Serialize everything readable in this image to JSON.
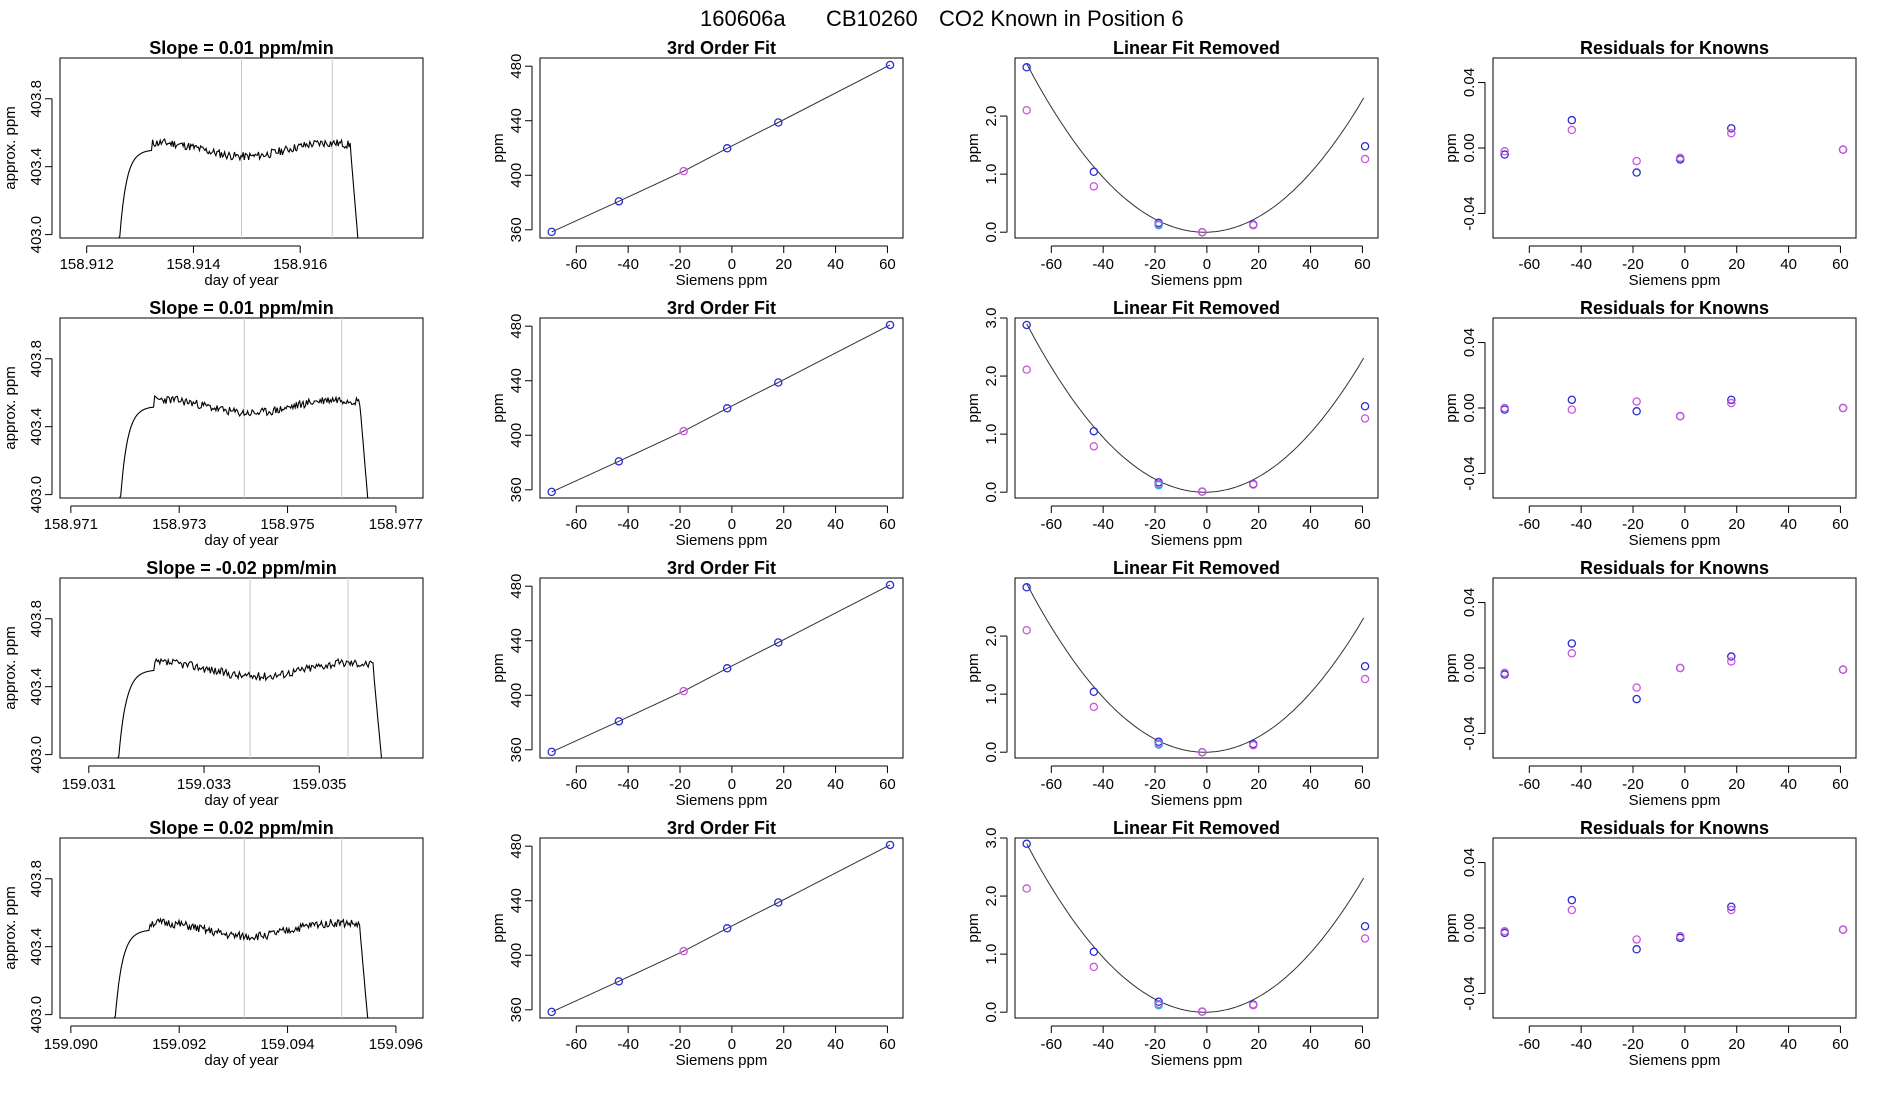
{
  "figure": {
    "title_id": "160606a",
    "title_instrument": "CB10260",
    "title_text": "CO2 Known in Position  6"
  },
  "colors": {
    "frame": "#000000",
    "trace": "#000000",
    "fit_line": "#333333",
    "vline": "#c8c8c8",
    "blue_point": "#2b2bd6",
    "magenta_point": "#cc55dd",
    "cyan_point": "#33aadd"
  },
  "chart_data": [
    {
      "row": 1,
      "type": "line",
      "title": "Slope =  0.01  ppm/min",
      "xlabel": "day of year",
      "ylabel": "approx. ppm",
      "xlim": [
        158.9115,
        158.9183
      ],
      "ylim": [
        402.98,
        404.04
      ],
      "xticks": [
        158.912,
        158.914,
        158.916
      ],
      "xtick_labels": [
        "158.912",
        "158.914",
        "158.916"
      ],
      "yticks": [
        403.0,
        403.4,
        403.8
      ],
      "ytick_labels": [
        "403.0",
        "403.4",
        "403.8"
      ],
      "vlines": [
        158.9149,
        158.9166
      ],
      "trace": {
        "x_start": 158.9126,
        "x_end": 158.9171,
        "plateau": 403.5,
        "seed": 11
      }
    },
    {
      "row": 1,
      "type": "line",
      "title": "3rd Order Fit",
      "xlabel": "Siemens ppm",
      "ylabel": "ppm",
      "xlim": [
        -74,
        66
      ],
      "ylim": [
        354,
        486
      ],
      "xticks": [
        -60,
        -40,
        -20,
        0,
        20,
        40,
        60
      ],
      "xtick_labels": [
        "-60",
        "-40",
        "-20",
        "0",
        "20",
        "40",
        "60"
      ],
      "yticks": [
        360,
        400,
        440,
        480
      ],
      "ytick_labels": [
        "360",
        "400",
        "440",
        "480"
      ],
      "x": [
        -69.5,
        -43.6,
        -18.6,
        -1.8,
        17.9,
        61.0
      ],
      "y": [
        358.5,
        380.9,
        403.0,
        419.8,
        438.7,
        480.9
      ],
      "point_colors": [
        "blue",
        "blue",
        "magenta",
        "blue",
        "blue",
        "blue"
      ]
    },
    {
      "row": 1,
      "type": "scatter",
      "title": "Linear Fit Removed",
      "xlabel": "Siemens ppm",
      "ylabel": "ppm",
      "xlim": [
        -74,
        66
      ],
      "ylim": [
        -0.1,
        3.0
      ],
      "xticks": [
        -60,
        -40,
        -20,
        0,
        20,
        40,
        60
      ],
      "xtick_labels": [
        "-60",
        "-40",
        "-20",
        "0",
        "20",
        "40",
        "60"
      ],
      "yticks": [
        0.0,
        1.0,
        2.0
      ],
      "ytick_labels": [
        "0.0",
        "1.0",
        "2.0"
      ],
      "curve": {
        "a": 0.000615,
        "b": 0.001
      },
      "series": [
        {
          "name": "blue",
          "x": [
            -69.5,
            -43.6,
            -18.6,
            -1.8,
            17.9,
            61.0
          ],
          "y": [
            2.84,
            1.04,
            0.16,
            0.0,
            0.13,
            1.48
          ]
        },
        {
          "name": "magenta",
          "x": [
            -69.5,
            -43.6,
            -18.6,
            -1.8,
            17.9,
            61.0
          ],
          "y": [
            2.1,
            0.79,
            0.14,
            0.0,
            0.12,
            1.26
          ]
        },
        {
          "name": "cyan",
          "x": [
            -18.6
          ],
          "y": [
            0.12
          ]
        }
      ]
    },
    {
      "row": 1,
      "type": "scatter",
      "title": "Residuals for Knowns",
      "xlabel": "Siemens ppm",
      "ylabel": "ppm",
      "xlim": [
        -74,
        66
      ],
      "ylim": [
        -0.055,
        0.055
      ],
      "xticks": [
        -60,
        -40,
        -20,
        0,
        20,
        40,
        60
      ],
      "xtick_labels": [
        "-60",
        "-40",
        "-20",
        "0",
        "20",
        "40",
        "60"
      ],
      "yticks": [
        -0.04,
        0.0,
        0.04
      ],
      "ytick_labels": [
        "-0.04",
        "0.00",
        "0.04"
      ],
      "series": [
        {
          "name": "blue",
          "x": [
            -69.5,
            -43.6,
            -18.6,
            -1.8,
            17.9,
            61.0
          ],
          "y": [
            -0.004,
            0.017,
            -0.015,
            -0.007,
            0.012,
            -0.001
          ]
        },
        {
          "name": "magenta",
          "x": [
            -69.5,
            -43.6,
            -18.6,
            -1.8,
            17.9,
            61.0
          ],
          "y": [
            -0.002,
            0.011,
            -0.008,
            -0.006,
            0.009,
            -0.001
          ]
        }
      ]
    },
    {
      "row": 2,
      "type": "line",
      "title": "Slope =  0.01  ppm/min",
      "xlabel": "day of year",
      "ylabel": "approx. ppm",
      "xlim": [
        158.9708,
        158.9775
      ],
      "ylim": [
        402.98,
        404.04
      ],
      "xticks": [
        158.971,
        158.973,
        158.975,
        158.977
      ],
      "xtick_labels": [
        "158.971",
        "158.973",
        "158.975",
        "158.977"
      ],
      "yticks": [
        403.0,
        403.4,
        403.8
      ],
      "ytick_labels": [
        "403.0",
        "403.4",
        "403.8"
      ],
      "vlines": [
        158.9742,
        158.976
      ],
      "trace": {
        "x_start": 158.9719,
        "x_end": 158.9765,
        "plateau": 403.52,
        "seed": 23
      }
    },
    {
      "row": 2,
      "type": "line",
      "title": "3rd Order Fit",
      "xlabel": "Siemens ppm",
      "ylabel": "ppm",
      "xlim": [
        -74,
        66
      ],
      "ylim": [
        354,
        486
      ],
      "xticks": [
        -60,
        -40,
        -20,
        0,
        20,
        40,
        60
      ],
      "xtick_labels": [
        "-60",
        "-40",
        "-20",
        "0",
        "20",
        "40",
        "60"
      ],
      "yticks": [
        360,
        400,
        440,
        480
      ],
      "ytick_labels": [
        "360",
        "400",
        "440",
        "480"
      ],
      "x": [
        -69.5,
        -43.6,
        -18.6,
        -1.8,
        17.9,
        61.0
      ],
      "y": [
        358.5,
        380.9,
        403.0,
        419.8,
        438.7,
        480.9
      ],
      "point_colors": [
        "blue",
        "blue",
        "magenta",
        "blue",
        "blue",
        "blue"
      ]
    },
    {
      "row": 2,
      "type": "scatter",
      "title": "Linear Fit Removed",
      "xlabel": "Siemens ppm",
      "ylabel": "ppm",
      "xlim": [
        -74,
        66
      ],
      "ylim": [
        -0.1,
        3.0
      ],
      "xticks": [
        -60,
        -40,
        -20,
        0,
        20,
        40,
        60
      ],
      "xtick_labels": [
        "-60",
        "-40",
        "-20",
        "0",
        "20",
        "40",
        "60"
      ],
      "yticks": [
        0.0,
        1.0,
        2.0,
        3.0
      ],
      "ytick_labels": [
        "0.0",
        "1.0",
        "2.0",
        "3.0"
      ],
      "curve": {
        "a": 0.000615,
        "b": 0.001
      },
      "series": [
        {
          "name": "blue",
          "x": [
            -69.5,
            -43.6,
            -18.6,
            -1.8,
            17.9,
            61.0
          ],
          "y": [
            2.88,
            1.05,
            0.17,
            0.01,
            0.14,
            1.48
          ]
        },
        {
          "name": "magenta",
          "x": [
            -69.5,
            -43.6,
            -18.6,
            -1.8,
            17.9,
            61.0
          ],
          "y": [
            2.11,
            0.79,
            0.14,
            0.01,
            0.13,
            1.27
          ]
        },
        {
          "name": "cyan",
          "x": [
            -18.6
          ],
          "y": [
            0.12
          ]
        }
      ]
    },
    {
      "row": 2,
      "type": "scatter",
      "title": "Residuals for Knowns",
      "xlabel": "Siemens ppm",
      "ylabel": "ppm",
      "xlim": [
        -74,
        66
      ],
      "ylim": [
        -0.055,
        0.055
      ],
      "xticks": [
        -60,
        -40,
        -20,
        0,
        20,
        40,
        60
      ],
      "xtick_labels": [
        "-60",
        "-40",
        "-20",
        "0",
        "20",
        "40",
        "60"
      ],
      "yticks": [
        -0.04,
        0.0,
        0.04
      ],
      "ytick_labels": [
        "-0.04",
        "0.00",
        "0.04"
      ],
      "series": [
        {
          "name": "blue",
          "x": [
            -69.5,
            -43.6,
            -18.6,
            -1.8,
            17.9,
            61.0
          ],
          "y": [
            -0.001,
            0.005,
            -0.002,
            -0.005,
            0.005,
            0.0
          ]
        },
        {
          "name": "magenta",
          "x": [
            -69.5,
            -43.6,
            -18.6,
            -1.8,
            17.9,
            61.0
          ],
          "y": [
            0.0,
            -0.001,
            0.004,
            -0.005,
            0.003,
            0.0
          ]
        }
      ]
    },
    {
      "row": 3,
      "type": "line",
      "title": "Slope =  -0.02  ppm/min",
      "xlabel": "day of year",
      "ylabel": "approx. ppm",
      "xlim": [
        159.0305,
        159.0368
      ],
      "ylim": [
        402.98,
        404.04
      ],
      "xticks": [
        159.031,
        159.033,
        159.035
      ],
      "xtick_labels": [
        "159.031",
        "159.033",
        "159.035"
      ],
      "yticks": [
        403.0,
        403.4,
        403.8
      ],
      "ytick_labels": [
        "403.0",
        "403.4",
        "403.8"
      ],
      "vlines": [
        159.0338,
        159.0355
      ],
      "trace": {
        "x_start": 159.0315,
        "x_end": 159.0361,
        "plateau": 403.5,
        "seed": 37
      }
    },
    {
      "row": 3,
      "type": "line",
      "title": "3rd Order Fit",
      "xlabel": "Siemens ppm",
      "ylabel": "ppm",
      "xlim": [
        -74,
        66
      ],
      "ylim": [
        354,
        486
      ],
      "xticks": [
        -60,
        -40,
        -20,
        0,
        20,
        40,
        60
      ],
      "xtick_labels": [
        "-60",
        "-40",
        "-20",
        "0",
        "20",
        "40",
        "60"
      ],
      "yticks": [
        360,
        400,
        440,
        480
      ],
      "ytick_labels": [
        "360",
        "400",
        "440",
        "480"
      ],
      "x": [
        -69.5,
        -43.6,
        -18.6,
        -1.8,
        17.9,
        61.0
      ],
      "y": [
        358.5,
        380.9,
        403.0,
        419.8,
        438.7,
        480.9
      ],
      "point_colors": [
        "blue",
        "blue",
        "magenta",
        "blue",
        "blue",
        "blue"
      ]
    },
    {
      "row": 3,
      "type": "scatter",
      "title": "Linear Fit Removed",
      "xlabel": "Siemens ppm",
      "ylabel": "ppm",
      "xlim": [
        -74,
        66
      ],
      "ylim": [
        -0.1,
        3.0
      ],
      "xticks": [
        -60,
        -40,
        -20,
        0,
        20,
        40,
        60
      ],
      "xtick_labels": [
        "-60",
        "-40",
        "-20",
        "0",
        "20",
        "40",
        "60"
      ],
      "yticks": [
        0.0,
        1.0,
        2.0
      ],
      "ytick_labels": [
        "0.0",
        "1.0",
        "2.0"
      ],
      "curve": {
        "a": 0.000615,
        "b": 0.001
      },
      "series": [
        {
          "name": "blue",
          "x": [
            -69.5,
            -43.6,
            -18.6,
            -1.8,
            17.9,
            61.0
          ],
          "y": [
            2.84,
            1.04,
            0.18,
            0.0,
            0.14,
            1.48
          ]
        },
        {
          "name": "magenta",
          "x": [
            -69.5,
            -43.6,
            -18.6,
            -1.8,
            17.9,
            61.0
          ],
          "y": [
            2.1,
            0.78,
            0.15,
            0.0,
            0.12,
            1.26
          ]
        },
        {
          "name": "cyan",
          "x": [
            -18.6
          ],
          "y": [
            0.13
          ]
        }
      ]
    },
    {
      "row": 3,
      "type": "scatter",
      "title": "Residuals for Knowns",
      "xlabel": "Siemens ppm",
      "ylabel": "ppm",
      "xlim": [
        -74,
        66
      ],
      "ylim": [
        -0.055,
        0.055
      ],
      "xticks": [
        -60,
        -40,
        -20,
        0,
        20,
        40,
        60
      ],
      "xtick_labels": [
        "-60",
        "-40",
        "-20",
        "0",
        "20",
        "40",
        "60"
      ],
      "yticks": [
        -0.04,
        0.0,
        0.04
      ],
      "ytick_labels": [
        "-0.04",
        "0.00",
        "0.04"
      ],
      "series": [
        {
          "name": "blue",
          "x": [
            -69.5,
            -43.6,
            -18.6,
            -1.8,
            17.9,
            61.0
          ],
          "y": [
            -0.004,
            0.015,
            -0.019,
            0.0,
            0.007,
            -0.001
          ]
        },
        {
          "name": "magenta",
          "x": [
            -69.5,
            -43.6,
            -18.6,
            -1.8,
            17.9,
            61.0
          ],
          "y": [
            -0.003,
            0.009,
            -0.012,
            0.0,
            0.004,
            -0.001
          ]
        }
      ]
    },
    {
      "row": 4,
      "type": "line",
      "title": "Slope =  0.02  ppm/min",
      "xlabel": "day of year",
      "ylabel": "approx. ppm",
      "xlim": [
        159.0898,
        159.0965
      ],
      "ylim": [
        402.98,
        404.04
      ],
      "xticks": [
        159.09,
        159.092,
        159.094,
        159.096
      ],
      "xtick_labels": [
        "159.090",
        "159.092",
        "159.094",
        "159.096"
      ],
      "yticks": [
        403.0,
        403.4,
        403.8
      ],
      "ytick_labels": [
        "403.0",
        "403.4",
        "403.8"
      ],
      "vlines": [
        159.0932,
        159.095
      ],
      "trace": {
        "x_start": 159.0908,
        "x_end": 159.0955,
        "plateau": 403.5,
        "seed": 51
      }
    },
    {
      "row": 4,
      "type": "line",
      "title": "3rd Order Fit",
      "xlabel": "Siemens ppm",
      "ylabel": "ppm",
      "xlim": [
        -74,
        66
      ],
      "ylim": [
        354,
        486
      ],
      "xticks": [
        -60,
        -40,
        -20,
        0,
        20,
        40,
        60
      ],
      "xtick_labels": [
        "-60",
        "-40",
        "-20",
        "0",
        "20",
        "40",
        "60"
      ],
      "yticks": [
        360,
        400,
        440,
        480
      ],
      "ytick_labels": [
        "360",
        "400",
        "440",
        "480"
      ],
      "x": [
        -69.5,
        -43.6,
        -18.6,
        -1.8,
        17.9,
        61.0
      ],
      "y": [
        358.5,
        380.9,
        403.0,
        419.8,
        438.7,
        480.9
      ],
      "point_colors": [
        "blue",
        "blue",
        "magenta",
        "blue",
        "blue",
        "blue"
      ]
    },
    {
      "row": 4,
      "type": "scatter",
      "title": "Linear Fit Removed",
      "xlabel": "Siemens ppm",
      "ylabel": "ppm",
      "xlim": [
        -74,
        66
      ],
      "ylim": [
        -0.1,
        3.0
      ],
      "xticks": [
        -60,
        -40,
        -20,
        0,
        20,
        40,
        60
      ],
      "xtick_labels": [
        "-60",
        "-40",
        "-20",
        "0",
        "20",
        "40",
        "60"
      ],
      "yticks": [
        0.0,
        1.0,
        2.0,
        3.0
      ],
      "ytick_labels": [
        "0.0",
        "1.0",
        "2.0",
        "3.0"
      ],
      "curve": {
        "a": 0.000615,
        "b": 0.001
      },
      "series": [
        {
          "name": "blue",
          "x": [
            -69.5,
            -43.6,
            -18.6,
            -1.8,
            17.9,
            61.0
          ],
          "y": [
            2.9,
            1.04,
            0.18,
            0.01,
            0.13,
            1.48
          ]
        },
        {
          "name": "magenta",
          "x": [
            -69.5,
            -43.6,
            -18.6,
            -1.8,
            17.9,
            61.0
          ],
          "y": [
            2.13,
            0.78,
            0.14,
            0.01,
            0.12,
            1.27
          ]
        },
        {
          "name": "cyan",
          "x": [
            -18.6
          ],
          "y": [
            0.12
          ]
        }
      ]
    },
    {
      "row": 4,
      "type": "scatter",
      "title": "Residuals for Knowns",
      "xlabel": "Siemens ppm",
      "ylabel": "ppm",
      "xlim": [
        -74,
        66
      ],
      "ylim": [
        -0.055,
        0.055
      ],
      "xticks": [
        -60,
        -40,
        -20,
        0,
        20,
        40,
        60
      ],
      "xtick_labels": [
        "-60",
        "-40",
        "-20",
        "0",
        "20",
        "40",
        "60"
      ],
      "yticks": [
        -0.04,
        0.0,
        0.04
      ],
      "ytick_labels": [
        "-0.04",
        "0.00",
        "0.04"
      ],
      "series": [
        {
          "name": "blue",
          "x": [
            -69.5,
            -43.6,
            -18.6,
            -1.8,
            17.9,
            61.0
          ],
          "y": [
            -0.003,
            0.017,
            -0.013,
            -0.006,
            0.013,
            -0.001
          ]
        },
        {
          "name": "magenta",
          "x": [
            -69.5,
            -43.6,
            -18.6,
            -1.8,
            17.9,
            61.0
          ],
          "y": [
            -0.002,
            0.011,
            -0.007,
            -0.005,
            0.011,
            -0.001
          ]
        }
      ]
    }
  ]
}
